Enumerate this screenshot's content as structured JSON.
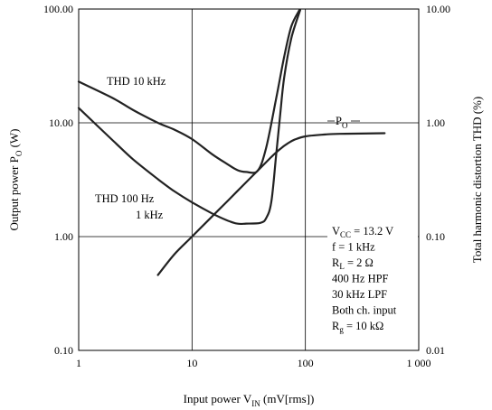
{
  "chart_data": {
    "type": "line",
    "x_scale": "log",
    "y_scale_left": "log",
    "y_scale_right": "log",
    "xlim": [
      1,
      1000
    ],
    "ylim_left": [
      0.1,
      100
    ],
    "ylim_right": [
      0.01,
      10
    ],
    "grid": true,
    "xlabel": {
      "main": "Input power  V",
      "sub": "IN",
      "unit": "  (mV[rms])"
    },
    "ylabel_left": {
      "main": "Output power  P",
      "sub": "O",
      "unit": "  (W)"
    },
    "ylabel_right": "Total harmonic distortion  THD  (%)",
    "x_ticks": [
      {
        "value": 1,
        "label": "1"
      },
      {
        "value": 10,
        "label": "10"
      },
      {
        "value": 100,
        "label": "100"
      },
      {
        "value": 1000,
        "label": "1 000"
      }
    ],
    "y_ticks_left": [
      {
        "value": 0.1,
        "label": "0.10"
      },
      {
        "value": 1,
        "label": "1.00"
      },
      {
        "value": 10,
        "label": "10.00"
      },
      {
        "value": 100,
        "label": "100.00"
      }
    ],
    "y_ticks_right": [
      {
        "value": 0.01,
        "label": "0.01"
      },
      {
        "value": 0.1,
        "label": "0.10"
      },
      {
        "value": 1,
        "label": "1.00"
      },
      {
        "value": 10,
        "label": "10.00"
      }
    ],
    "series": [
      {
        "name": "P",
        "name_sub": "O",
        "axis": "left",
        "points": [
          [
            5,
            0.46
          ],
          [
            7,
            0.7
          ],
          [
            10,
            1.0
          ],
          [
            15,
            1.5
          ],
          [
            20,
            2.0
          ],
          [
            30,
            3.0
          ],
          [
            40,
            4.0
          ],
          [
            50,
            5.0
          ],
          [
            60,
            5.9
          ],
          [
            70,
            6.6
          ],
          [
            80,
            7.1
          ],
          [
            100,
            7.6
          ],
          [
            150,
            7.9
          ],
          [
            200,
            8.0
          ],
          [
            500,
            8.1
          ]
        ]
      },
      {
        "name": "THD 10 kHz",
        "axis": "right",
        "points": [
          [
            1,
            2.3
          ],
          [
            2,
            1.65
          ],
          [
            3,
            1.3
          ],
          [
            5,
            1.0
          ],
          [
            7,
            0.87
          ],
          [
            10,
            0.72
          ],
          [
            15,
            0.53
          ],
          [
            20,
            0.44
          ],
          [
            25,
            0.385
          ],
          [
            30,
            0.37
          ],
          [
            38,
            0.38
          ],
          [
            45,
            0.6
          ],
          [
            55,
            1.6
          ],
          [
            65,
            3.8
          ],
          [
            75,
            7.0
          ],
          [
            88,
            9.7
          ]
        ]
      },
      {
        "name": "THD 100 Hz 1 kHz",
        "axis": "right",
        "points": [
          [
            1,
            1.35
          ],
          [
            2,
            0.7
          ],
          [
            3,
            0.48
          ],
          [
            5,
            0.32
          ],
          [
            7,
            0.25
          ],
          [
            10,
            0.2
          ],
          [
            15,
            0.16
          ],
          [
            20,
            0.14
          ],
          [
            25,
            0.13
          ],
          [
            30,
            0.13
          ],
          [
            40,
            0.132
          ],
          [
            45,
            0.145
          ],
          [
            50,
            0.2
          ],
          [
            55,
            0.5
          ],
          [
            60,
            1.2
          ],
          [
            65,
            2.5
          ],
          [
            75,
            5.5
          ],
          [
            90,
            9.8
          ]
        ]
      }
    ],
    "annotations": {
      "thd10k": "THD 10 kHz",
      "thd100_line1": "THD 100 Hz",
      "thd100_line2": "1 kHz",
      "po_main": "P",
      "po_sub": "O"
    },
    "conditions": [
      {
        "pre": "V",
        "sub": "CC",
        "post": " = 13.2 V"
      },
      {
        "pre": "f = 1 kHz",
        "sub": "",
        "post": ""
      },
      {
        "pre": "R",
        "sub": "L",
        "post": " = 2 Ω"
      },
      {
        "pre": "400 Hz HPF",
        "sub": "",
        "post": ""
      },
      {
        "pre": "30 kHz LPF",
        "sub": "",
        "post": ""
      },
      {
        "pre": "Both ch. input",
        "sub": "",
        "post": ""
      },
      {
        "pre": "R",
        "sub": "g",
        "post": " = 10 kΩ"
      }
    ]
  }
}
